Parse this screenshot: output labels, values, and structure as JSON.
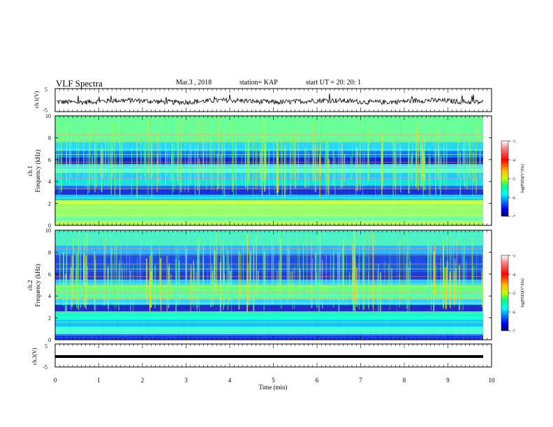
{
  "header": {
    "title": "VLF Spectra",
    "date": "Mar.3 , 2018",
    "station": "station= KAP",
    "start_ut": "start UT = 20: 20: 1"
  },
  "colors": {
    "trace": "#000000",
    "colormap": [
      "#000080",
      "#0000ff",
      "#00a0ff",
      "#00ffff",
      "#40ff80",
      "#c0ff00",
      "#ffff00",
      "#ff8000",
      "#ff0000",
      "#ffffff"
    ]
  },
  "chart_data": [
    {
      "type": "line",
      "ylabel": "ch.1(V)",
      "ylim": [
        -5,
        5
      ],
      "yticks": [
        "5",
        "-5"
      ],
      "xlim": [
        0,
        10
      ],
      "description_values": "noisy waveform around -0.5 V, amplitude about ±1.5 V"
    },
    {
      "type": "heatmap",
      "ylabel_channel": "ch.1",
      "ylabel": "Frequency (kHz)",
      "ylim": [
        0,
        10
      ],
      "yticks": [
        "0",
        "2",
        "4",
        "6",
        "8",
        "10"
      ],
      "xlim": [
        0,
        10
      ],
      "colorbar": {
        "label": "log(PSD)(V²/Hz)",
        "range": [
          -7,
          -3
        ],
        "ticks": [
          "-3",
          "-4",
          "-5",
          "-6",
          "-7"
        ]
      }
    },
    {
      "type": "heatmap",
      "ylabel_channel": "ch.2",
      "ylabel": "Frequency (kHz)",
      "ylim": [
        0,
        10
      ],
      "yticks": [
        "0",
        "2",
        "4",
        "6",
        "8",
        "10"
      ],
      "xlim": [
        0,
        10
      ],
      "colorbar": {
        "label": "log(PSD)(V²/Hz)",
        "range": [
          -7,
          -3
        ],
        "ticks": [
          "-3",
          "-4",
          "-5",
          "-6",
          "-7"
        ]
      }
    },
    {
      "type": "line",
      "ylabel": "ch.3(V)",
      "ylim": [
        -5,
        5
      ],
      "yticks": [
        "5",
        "-5"
      ],
      "xlim": [
        0,
        10
      ],
      "xticks": [
        "0",
        "1",
        "2",
        "3",
        "4",
        "5",
        "6",
        "7",
        "8",
        "9",
        "10"
      ],
      "xlabel": "Time (min)"
    }
  ]
}
